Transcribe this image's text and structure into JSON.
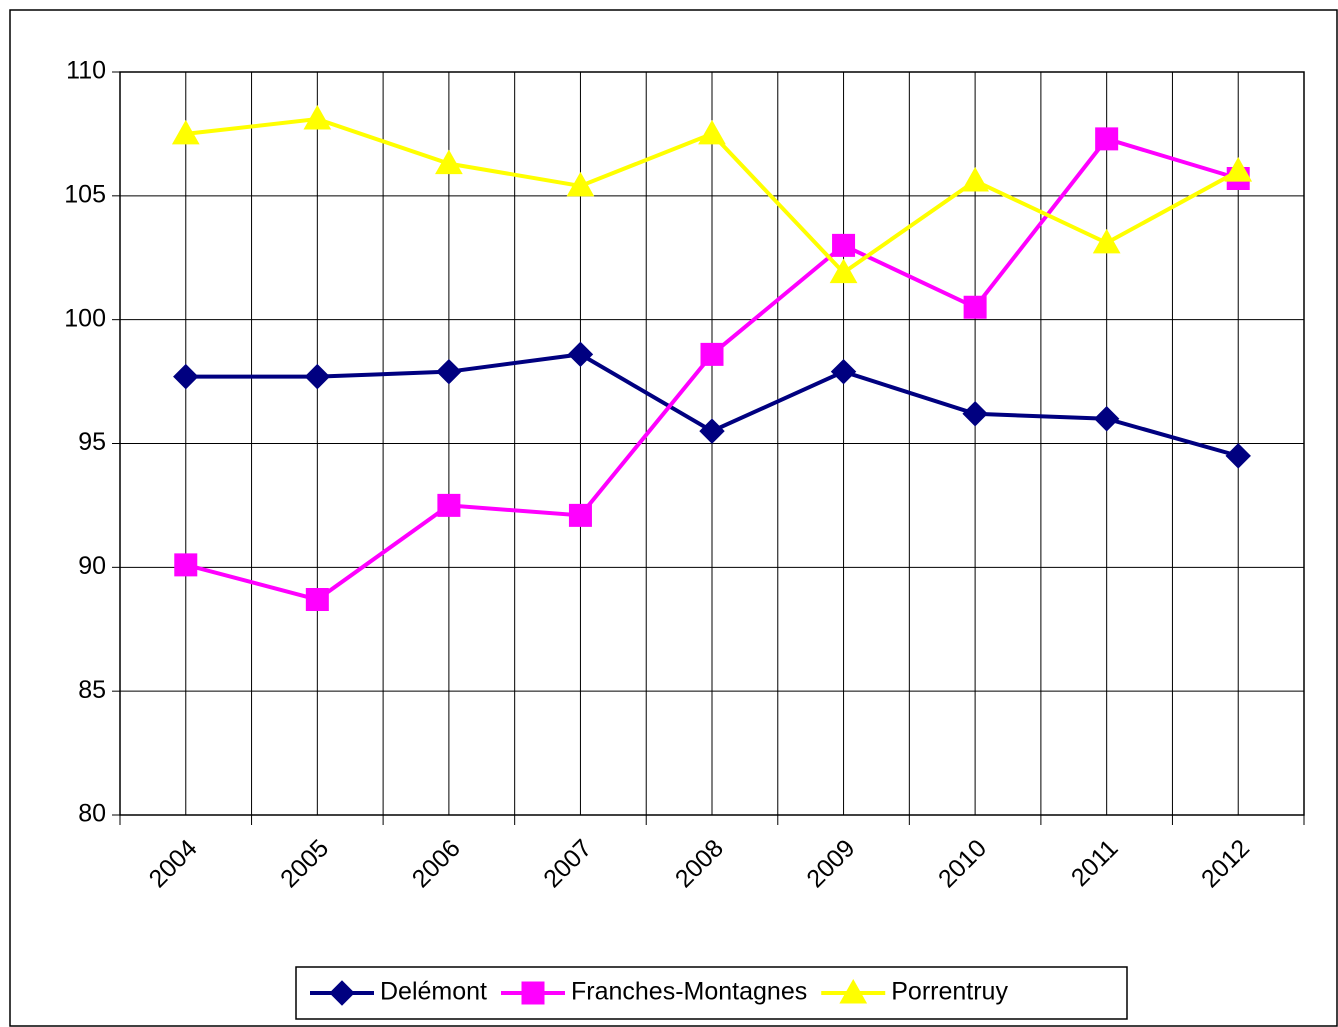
{
  "chart_data": {
    "type": "line",
    "categories": [
      "2004",
      "2005",
      "2006",
      "2007",
      "2008",
      "2009",
      "2010",
      "2011",
      "2012"
    ],
    "series": [
      {
        "name": "Delémont",
        "color": "#000080",
        "marker": "diamond",
        "values": [
          97.7,
          97.7,
          97.9,
          98.6,
          95.5,
          97.9,
          96.2,
          96.0,
          94.5
        ]
      },
      {
        "name": "Franches-Montagnes",
        "color": "#ff00ff",
        "marker": "square",
        "values": [
          90.1,
          88.7,
          92.5,
          92.1,
          98.6,
          103.0,
          100.5,
          107.3,
          105.7
        ]
      },
      {
        "name": "Porrentruy",
        "color": "#ffff00",
        "marker": "triangle",
        "values": [
          107.5,
          108.1,
          106.3,
          105.4,
          107.5,
          101.9,
          105.6,
          103.1,
          106.0
        ]
      }
    ],
    "ylim": [
      80,
      110
    ],
    "yticks": [
      80,
      85,
      90,
      95,
      100,
      105,
      110
    ],
    "grid": true,
    "legend": "bottom"
  }
}
